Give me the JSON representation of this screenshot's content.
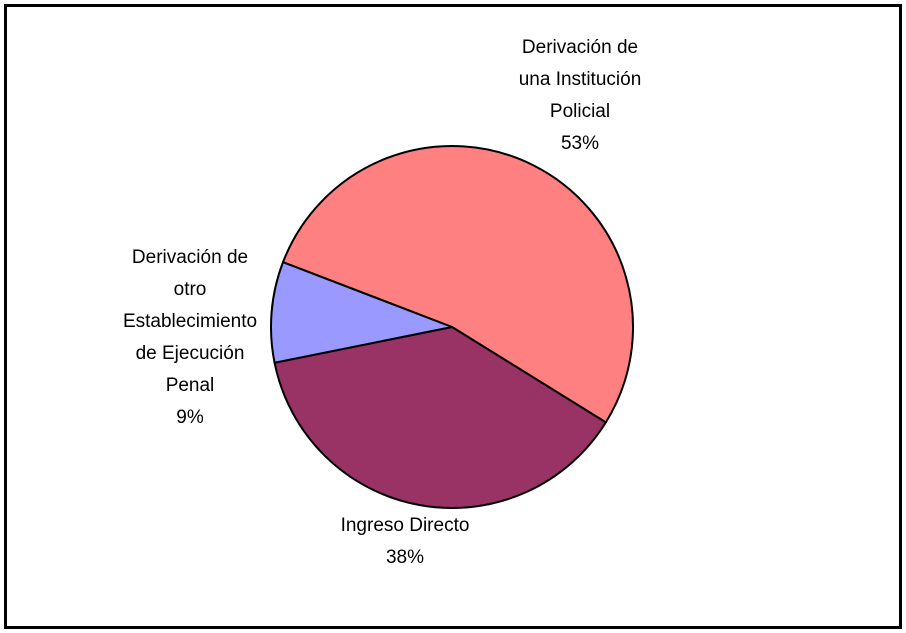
{
  "chart_data": {
    "type": "pie",
    "categories": [
      "Derivación de\nuna Institución\nPolicial",
      "Ingreso Directo",
      "Derivación de\notro\nEstablecimiento\nde Ejecución\nPenal"
    ],
    "values": [
      53,
      38,
      9
    ],
    "value_labels": [
      "53%",
      "38%",
      "9%"
    ],
    "colors": [
      "#ff8080",
      "#993366",
      "#9999ff"
    ]
  }
}
